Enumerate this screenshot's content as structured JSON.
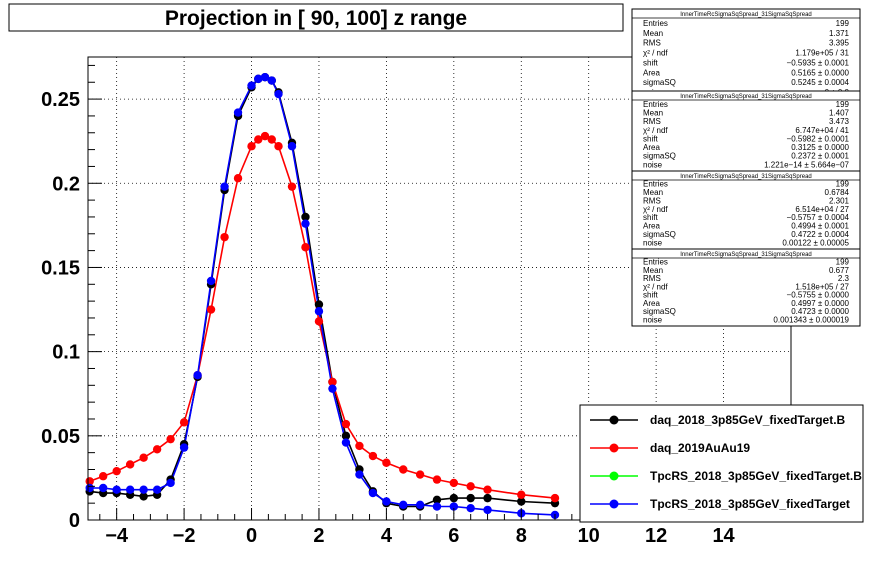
{
  "title": "Projection in [  90, 100] z range",
  "chart_data": {
    "type": "scatter",
    "title": "Projection in [  90, 100] z range",
    "xlabel": "",
    "ylabel": "",
    "xlim": [
      -4.85,
      16.0
    ],
    "ylim": [
      0,
      0.275
    ],
    "grid": true,
    "x_ticks": [
      "−4",
      "−2",
      "0",
      "2",
      "4",
      "6",
      "8",
      "10",
      "12",
      "14"
    ],
    "x_tick_values": [
      -4,
      -2,
      0,
      2,
      4,
      6,
      8,
      10,
      12,
      14
    ],
    "y_ticks": [
      "0",
      "0.05",
      "0.1",
      "0.15",
      "0.2",
      "0.25"
    ],
    "y_tick_values": [
      0,
      0.05,
      0.1,
      0.15,
      0.2,
      0.25
    ],
    "series": [
      {
        "name": "daq_2018_3p85GeV_fixedTarget.B",
        "color": "#000000",
        "x": [
          -4.8,
          -4.4,
          -4.0,
          -3.6,
          -3.2,
          -2.8,
          -2.4,
          -2.0,
          -1.6,
          -1.2,
          -0.8,
          -0.4,
          0.0,
          0.2,
          0.4,
          0.6,
          0.8,
          1.2,
          1.6,
          2.0,
          2.4,
          2.8,
          3.2,
          3.6,
          4.0,
          4.5,
          5.0,
          5.5,
          6.0,
          6.5,
          7.0,
          8.0,
          9.0
        ],
        "y": [
          0.017,
          0.016,
          0.016,
          0.015,
          0.014,
          0.015,
          0.024,
          0.045,
          0.085,
          0.14,
          0.196,
          0.24,
          0.257,
          0.262,
          0.263,
          0.261,
          0.254,
          0.224,
          0.18,
          0.128,
          0.082,
          0.05,
          0.03,
          0.017,
          0.01,
          0.008,
          0.008,
          0.012,
          0.013,
          0.013,
          0.013,
          0.011,
          0.01
        ]
      },
      {
        "name": "daq_2019AuAu19",
        "color": "#ff0000",
        "x": [
          -4.8,
          -4.4,
          -4.0,
          -3.6,
          -3.2,
          -2.8,
          -2.4,
          -2.0,
          -1.6,
          -1.2,
          -0.8,
          -0.4,
          0.0,
          0.2,
          0.4,
          0.6,
          0.8,
          1.2,
          1.6,
          2.0,
          2.4,
          2.8,
          3.2,
          3.6,
          4.0,
          4.5,
          5.0,
          5.5,
          6.0,
          6.5,
          7.0,
          8.0,
          9.0
        ],
        "y": [
          0.023,
          0.026,
          0.029,
          0.033,
          0.037,
          0.042,
          0.048,
          0.058,
          0.086,
          0.125,
          0.168,
          0.203,
          0.222,
          0.226,
          0.228,
          0.226,
          0.222,
          0.198,
          0.162,
          0.118,
          0.082,
          0.057,
          0.044,
          0.038,
          0.034,
          0.03,
          0.027,
          0.024,
          0.022,
          0.02,
          0.018,
          0.015,
          0.013
        ]
      },
      {
        "name": "TpcRS_2018_3p85GeV_fixedTarget.B",
        "color": "#00ff00",
        "x": [],
        "y": []
      },
      {
        "name": "TpcRS_2018_3p85GeV_fixedTarget",
        "color": "#0000ff",
        "x": [
          -4.8,
          -4.4,
          -4.0,
          -3.6,
          -3.2,
          -2.8,
          -2.4,
          -2.0,
          -1.6,
          -1.2,
          -0.8,
          -0.4,
          0.0,
          0.2,
          0.4,
          0.6,
          0.8,
          1.2,
          1.6,
          2.0,
          2.4,
          2.8,
          3.2,
          3.6,
          4.0,
          4.5,
          5.0,
          5.5,
          6.0,
          6.5,
          7.0,
          8.0,
          9.0
        ],
        "y": [
          0.019,
          0.019,
          0.018,
          0.018,
          0.018,
          0.018,
          0.022,
          0.043,
          0.086,
          0.142,
          0.198,
          0.242,
          0.258,
          0.262,
          0.263,
          0.261,
          0.253,
          0.222,
          0.176,
          0.124,
          0.078,
          0.046,
          0.027,
          0.016,
          0.011,
          0.009,
          0.009,
          0.008,
          0.008,
          0.007,
          0.006,
          0.004,
          0.003
        ]
      }
    ]
  },
  "legend": {
    "placement": "bottom-right",
    "entries": [
      {
        "label": "daq_2018_3p85GeV_fixedTarget.B",
        "color": "#000000"
      },
      {
        "label": "daq_2019AuAu19",
        "color": "#ff0000"
      },
      {
        "label": "TpcRS_2018_3p85GeV_fixedTarget.B",
        "color": "#00ff00"
      },
      {
        "label": "TpcRS_2018_3p85GeV_fixedTarget",
        "color": "#0000ff"
      }
    ]
  },
  "stat_boxes": [
    {
      "title": "InnerTimeRcSigmaSqSpread_31SigmaSqSpread",
      "rows": [
        [
          "Entries",
          "199"
        ],
        [
          "Mean",
          "1.371"
        ],
        [
          "RMS",
          "3.395"
        ],
        [
          "χ² / ndf",
          "1.179e+05 / 31"
        ],
        [
          "shift",
          "−0.5935 ± 0.0001"
        ],
        [
          "Area",
          "0.5165 ± 0.0000"
        ],
        [
          "sigmaSQ",
          "0.5245 ± 0.0004"
        ],
        [
          "noise",
          "0 ± 0.0"
        ]
      ]
    },
    {
      "title": "InnerTimeRcSigmaSqSpread_31SigmaSqSpread",
      "rows": [
        [
          "Entries",
          "199"
        ],
        [
          "Mean",
          "1.407"
        ],
        [
          "RMS",
          "3.473"
        ],
        [
          "χ² / ndf",
          "6.747e+04 / 41"
        ],
        [
          "shift",
          "−0.5982 ± 0.0001"
        ],
        [
          "Area",
          "0.3125 ± 0.0000"
        ],
        [
          "sigmaSQ",
          "0.2372 ± 0.0001"
        ],
        [
          "noise",
          "1.221e−14 ± 5.664e−07"
        ]
      ]
    },
    {
      "title": "InnerTimeRcSigmaSqSpread_31SigmaSqSpread",
      "rows": [
        [
          "Entries",
          "199"
        ],
        [
          "Mean",
          "0.6784"
        ],
        [
          "RMS",
          "2.301"
        ],
        [
          "χ² / ndf",
          "6.514e+04 / 27"
        ],
        [
          "shift",
          "−0.5757 ± 0.0004"
        ],
        [
          "Area",
          "0.4994 ± 0.0001"
        ],
        [
          "sigmaSQ",
          "0.4722 ± 0.0004"
        ],
        [
          "noise",
          "0.00122 ± 0.00005"
        ]
      ]
    },
    {
      "title": "InnerTimeRcSigmaSqSpread_31SigmaSqSpread",
      "rows": [
        [
          "Entries",
          "199"
        ],
        [
          "Mean",
          "0.677"
        ],
        [
          "RMS",
          "2.3"
        ],
        [
          "χ² / ndf",
          "1.518e+05 / 27"
        ],
        [
          "shift",
          "−0.5755 ± 0.0000"
        ],
        [
          "Area",
          "0.4997 ± 0.0000"
        ],
        [
          "sigmaSQ",
          "0.4723 ± 0.0000"
        ],
        [
          "noise",
          "0.001343 ± 0.000019"
        ]
      ]
    }
  ]
}
